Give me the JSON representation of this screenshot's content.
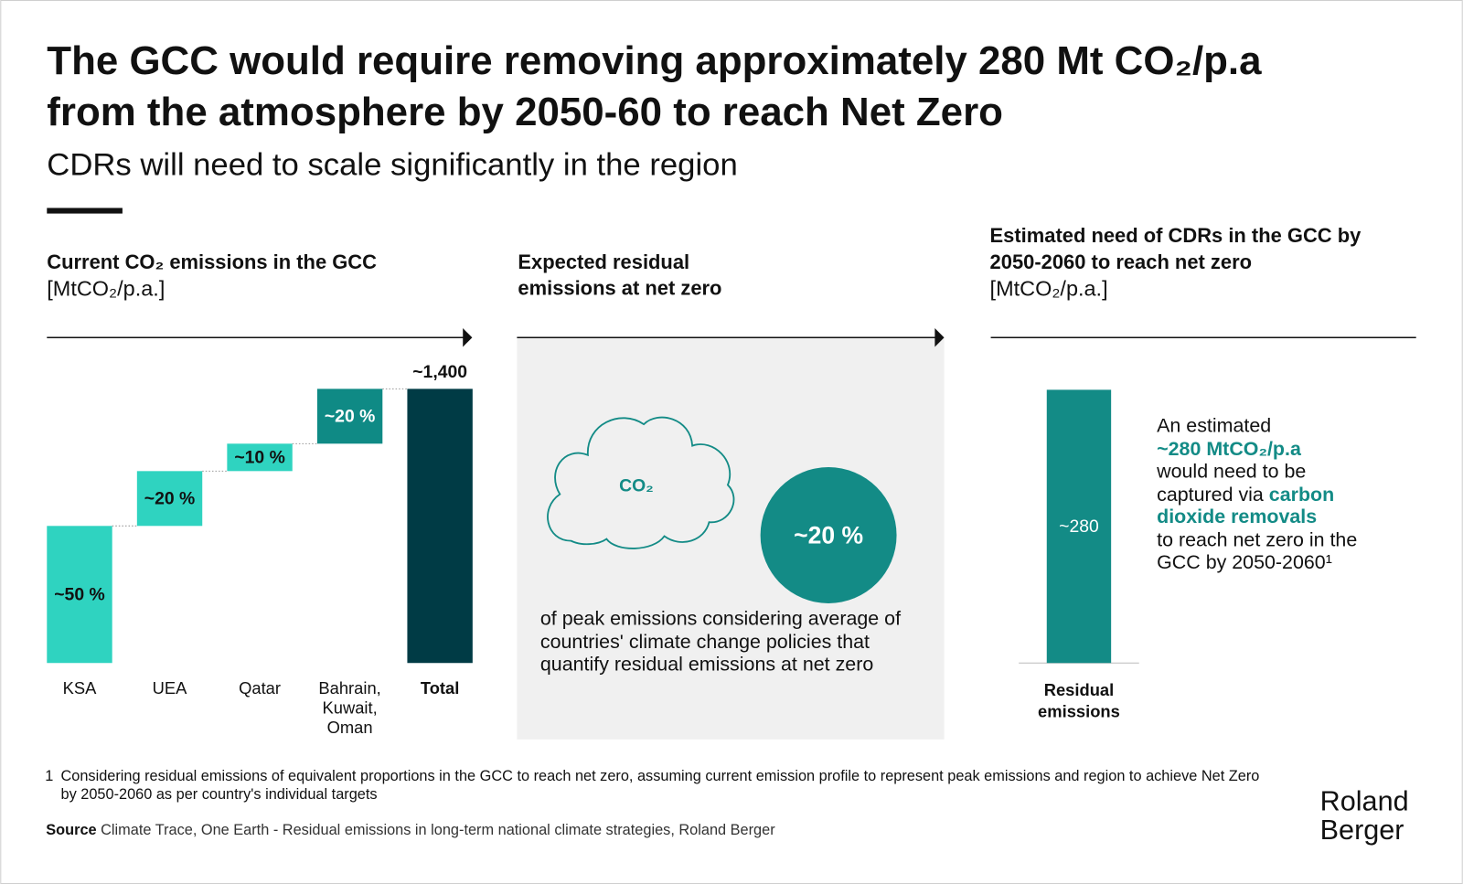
{
  "header": {
    "title_lines": [
      "The GCC would require removing approximately 280 Mt CO₂/p.a",
      "from the atmosphere by 2050-60 to reach Net Zero"
    ],
    "subtitle": "CDRs will need to scale significantly in the region"
  },
  "chart_data": [
    {
      "type": "waterfall",
      "title": "Current CO₂ emissions in the GCC",
      "unit": "[MtCO₂/p.a.]",
      "categories": [
        "KSA",
        "UEA",
        "Qatar",
        "Bahrain, Kuwait, Oman"
      ],
      "values": [
        50,
        20,
        10,
        20
      ],
      "value_labels": [
        "~50 %",
        "~20 %",
        "~10 %",
        "~20 %"
      ],
      "colors": [
        "#2fd3c0",
        "#2fd3c0",
        "#2fd3c0",
        "#0f8a85"
      ],
      "total_category": "Total",
      "total": 1400,
      "total_label": "~1,400",
      "total_color": "#003b45"
    },
    {
      "type": "bar",
      "title": "Estimated need of CDRs in the GCC by 2050-2060 to reach net zero",
      "unit": "[MtCO₂/p.a.]",
      "categories": [
        "Residual emissions"
      ],
      "values": [
        280
      ],
      "value_labels": [
        "~280"
      ],
      "color": "#138b86"
    }
  ],
  "residual_panel": {
    "title": "Expected residual emissions at net zero",
    "cloud_label": "CO₂",
    "share": 20,
    "share_label": "~20 %",
    "note": "of peak emissions considering average of countries' climate change policies that quantify residual emissions at net zero"
  },
  "callout": {
    "text_1": "An estimated",
    "highlight_1": "~280 MtCO₂/p.a",
    "text_2": "would need to be captured via",
    "highlight_2": "carbon dioxide removals",
    "text_3": "to reach net zero in the GCC by 2050-2060¹"
  },
  "footnote": {
    "marker": "1",
    "text": "Considering residual emissions of equivalent proportions in the GCC to reach net zero, assuming current emission profile to represent peak emissions and region to achieve Net Zero by 2050-2060 as per country's individual targets"
  },
  "source": {
    "label": "Source",
    "text": "Climate Trace, One Earth - Residual emissions in long-term national climate strategies, Roland Berger"
  },
  "logo": [
    "Roland",
    "Berger"
  ]
}
